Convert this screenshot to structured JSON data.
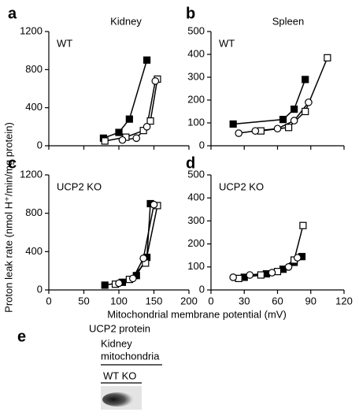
{
  "figure": {
    "ylabel": "Proton leak rate (nmol H⁺/min/mg protein)",
    "xlabel": "Mitochondrial membrane potential (mV)"
  },
  "chart_data": [
    {
      "type": "line",
      "letter": "a",
      "title": "Kidney",
      "label": "WT",
      "xlim": [
        0,
        200
      ],
      "xticks": [
        0,
        50,
        100,
        150,
        200
      ],
      "show_xtick_labels": false,
      "ylim": [
        0,
        1200
      ],
      "yticks": [
        0,
        400,
        800,
        1200
      ],
      "series": [
        {
          "marker": "square",
          "color": "#000000",
          "x": [
            78,
            100,
            115,
            140
          ],
          "values": [
            80,
            140,
            280,
            900
          ]
        },
        {
          "marker": "square",
          "color": "#ffffff",
          "x": [
            80,
            110,
            135,
            145,
            155
          ],
          "values": [
            50,
            90,
            160,
            260,
            700
          ]
        },
        {
          "marker": "circle",
          "color": "#ffffff",
          "x": [
            105,
            125,
            140,
            152
          ],
          "values": [
            60,
            80,
            200,
            680
          ]
        }
      ]
    },
    {
      "type": "line",
      "letter": "b",
      "title": "Spleen",
      "label": "WT",
      "xlim": [
        0,
        120
      ],
      "xticks": [
        0,
        30,
        60,
        90,
        120
      ],
      "show_xtick_labels": false,
      "ylim": [
        0,
        500
      ],
      "yticks": [
        0,
        100,
        200,
        300,
        400,
        500
      ],
      "series": [
        {
          "marker": "square",
          "color": "#000000",
          "x": [
            20,
            65,
            75,
            85
          ],
          "values": [
            95,
            115,
            160,
            290
          ]
        },
        {
          "marker": "square",
          "color": "#ffffff",
          "x": [
            45,
            70,
            85,
            105
          ],
          "values": [
            65,
            80,
            150,
            385
          ]
        },
        {
          "marker": "circle",
          "color": "#ffffff",
          "x": [
            25,
            40,
            60,
            75,
            88
          ],
          "values": [
            55,
            65,
            75,
            110,
            190
          ]
        }
      ]
    },
    {
      "type": "line",
      "letter": "c",
      "label": "UCP2 KO",
      "xlim": [
        0,
        200
      ],
      "xticks": [
        0,
        50,
        100,
        150,
        200
      ],
      "show_xtick_labels": true,
      "ylim": [
        0,
        1200
      ],
      "yticks": [
        0,
        400,
        800,
        1200
      ],
      "series": [
        {
          "marker": "square",
          "color": "#000000",
          "x": [
            80,
            105,
            125,
            140,
            145
          ],
          "values": [
            50,
            80,
            150,
            340,
            900
          ]
        },
        {
          "marker": "square",
          "color": "#ffffff",
          "x": [
            95,
            115,
            138,
            155
          ],
          "values": [
            60,
            110,
            280,
            880
          ]
        },
        {
          "marker": "circle",
          "color": "#ffffff",
          "x": [
            100,
            120,
            135,
            150
          ],
          "values": [
            70,
            120,
            330,
            890
          ]
        }
      ]
    },
    {
      "type": "line",
      "letter": "d",
      "label": "UCP2 KO",
      "xlim": [
        0,
        120
      ],
      "xticks": [
        0,
        30,
        60,
        90,
        120
      ],
      "show_xtick_labels": true,
      "ylim": [
        0,
        500
      ],
      "yticks": [
        0,
        100,
        200,
        300,
        400,
        500
      ],
      "series": [
        {
          "marker": "square",
          "color": "#000000",
          "x": [
            30,
            50,
            65,
            75,
            82
          ],
          "values": [
            55,
            70,
            90,
            120,
            145
          ]
        },
        {
          "marker": "square",
          "color": "#ffffff",
          "x": [
            25,
            45,
            60,
            75,
            83
          ],
          "values": [
            50,
            65,
            80,
            130,
            280
          ]
        },
        {
          "marker": "circle",
          "color": "#ffffff",
          "x": [
            20,
            35,
            55,
            70,
            78
          ],
          "values": [
            55,
            65,
            75,
            100,
            140
          ]
        }
      ]
    }
  ],
  "panel_e": {
    "letter": "e",
    "title": "UCP2 protein",
    "tissue": "Kidney",
    "fraction": "mitochondria",
    "lanes": "WT KO"
  }
}
